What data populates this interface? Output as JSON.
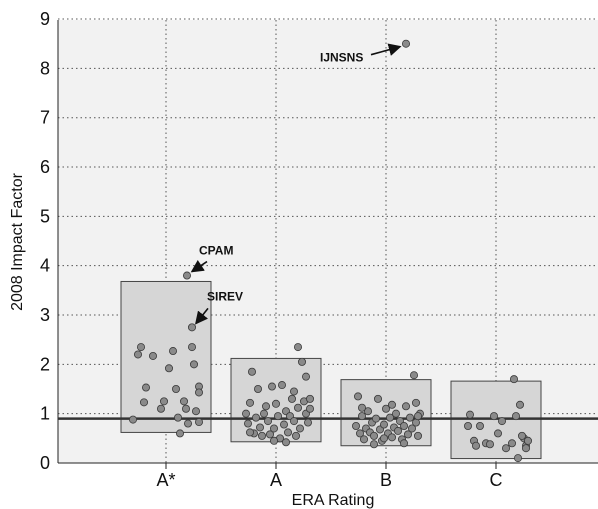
{
  "chart_data": {
    "type": "scatter",
    "xlabel": "ERA Rating",
    "ylabel": "2008 Impact Factor",
    "ylim": [
      0,
      9
    ],
    "yticks": [
      0,
      1,
      2,
      3,
      4,
      5,
      6,
      7,
      8,
      9
    ],
    "grid": true,
    "categories": [
      "A*",
      "A",
      "B",
      "C"
    ],
    "reference_line": 0.9,
    "boxes": [
      {
        "category": "A*",
        "low": 0.62,
        "high": 3.68
      },
      {
        "category": "A",
        "low": 0.43,
        "high": 2.12
      },
      {
        "category": "B",
        "low": 0.35,
        "high": 1.69
      },
      {
        "category": "C",
        "low": 0.09,
        "high": 1.66
      }
    ],
    "points": {
      "A*": [
        {
          "x": -0.28,
          "y": 2.2
        },
        {
          "x": -0.25,
          "y": 2.35
        },
        {
          "x": -0.22,
          "y": 1.23
        },
        {
          "x": -0.2,
          "y": 1.53
        },
        {
          "x": -0.13,
          "y": 2.17
        },
        {
          "x": -0.05,
          "y": 1.1
        },
        {
          "x": -0.02,
          "y": 1.25
        },
        {
          "x": 0.03,
          "y": 1.92
        },
        {
          "x": 0.07,
          "y": 2.27
        },
        {
          "x": 0.1,
          "y": 1.5
        },
        {
          "x": 0.12,
          "y": 0.92
        },
        {
          "x": 0.14,
          "y": 0.6
        },
        {
          "x": 0.18,
          "y": 1.25
        },
        {
          "x": 0.2,
          "y": 1.1
        },
        {
          "x": 0.22,
          "y": 0.8
        },
        {
          "x": 0.26,
          "y": 2.35
        },
        {
          "x": 0.28,
          "y": 2.0
        },
        {
          "x": 0.3,
          "y": 1.05
        },
        {
          "x": 0.33,
          "y": 1.55
        },
        {
          "x": 0.33,
          "y": 1.43
        },
        {
          "x": 0.33,
          "y": 0.83
        },
        {
          "x": -0.33,
          "y": 0.88
        },
        {
          "x": 0.26,
          "y": 2.75
        },
        {
          "x": 0.21,
          "y": 3.8
        }
      ],
      "A": [
        {
          "x": -0.3,
          "y": 1.0
        },
        {
          "x": -0.28,
          "y": 0.8
        },
        {
          "x": -0.26,
          "y": 1.22
        },
        {
          "x": -0.24,
          "y": 1.85
        },
        {
          "x": -0.22,
          "y": 0.6
        },
        {
          "x": -0.2,
          "y": 0.92
        },
        {
          "x": -0.18,
          "y": 1.5
        },
        {
          "x": -0.16,
          "y": 0.72
        },
        {
          "x": -0.14,
          "y": 0.55
        },
        {
          "x": -0.12,
          "y": 1.0
        },
        {
          "x": -0.1,
          "y": 1.15
        },
        {
          "x": -0.08,
          "y": 0.85
        },
        {
          "x": -0.06,
          "y": 0.58
        },
        {
          "x": -0.04,
          "y": 1.55
        },
        {
          "x": -0.02,
          "y": 0.7
        },
        {
          "x": 0.0,
          "y": 1.2
        },
        {
          "x": 0.02,
          "y": 0.95
        },
        {
          "x": 0.04,
          "y": 0.5
        },
        {
          "x": 0.06,
          "y": 1.58
        },
        {
          "x": 0.08,
          "y": 0.78
        },
        {
          "x": 0.1,
          "y": 1.05
        },
        {
          "x": 0.12,
          "y": 0.62
        },
        {
          "x": 0.14,
          "y": 0.95
        },
        {
          "x": 0.16,
          "y": 1.3
        },
        {
          "x": 0.18,
          "y": 0.85
        },
        {
          "x": 0.2,
          "y": 0.55
        },
        {
          "x": 0.22,
          "y": 1.12
        },
        {
          "x": 0.24,
          "y": 0.7
        },
        {
          "x": 0.26,
          "y": 2.05
        },
        {
          "x": 0.28,
          "y": 1.25
        },
        {
          "x": 0.3,
          "y": 1.0
        },
        {
          "x": 0.32,
          "y": 0.82
        },
        {
          "x": 0.34,
          "y": 1.1
        },
        {
          "x": 0.22,
          "y": 2.35
        },
        {
          "x": 0.3,
          "y": 1.75
        },
        {
          "x": -0.02,
          "y": 0.45
        },
        {
          "x": 0.1,
          "y": 0.42
        },
        {
          "x": -0.26,
          "y": 0.62
        },
        {
          "x": 0.18,
          "y": 1.45
        },
        {
          "x": 0.34,
          "y": 1.3
        }
      ],
      "B": [
        {
          "x": -0.3,
          "y": 0.75
        },
        {
          "x": -0.28,
          "y": 1.35
        },
        {
          "x": -0.26,
          "y": 0.6
        },
        {
          "x": -0.24,
          "y": 0.95
        },
        {
          "x": -0.22,
          "y": 0.48
        },
        {
          "x": -0.2,
          "y": 0.7
        },
        {
          "x": -0.18,
          "y": 1.05
        },
        {
          "x": -0.16,
          "y": 0.62
        },
        {
          "x": -0.14,
          "y": 0.82
        },
        {
          "x": -0.12,
          "y": 0.55
        },
        {
          "x": -0.1,
          "y": 0.9
        },
        {
          "x": -0.08,
          "y": 1.3
        },
        {
          "x": -0.06,
          "y": 0.68
        },
        {
          "x": -0.04,
          "y": 0.45
        },
        {
          "x": -0.02,
          "y": 0.78
        },
        {
          "x": 0.0,
          "y": 1.1
        },
        {
          "x": 0.02,
          "y": 0.6
        },
        {
          "x": 0.04,
          "y": 0.92
        },
        {
          "x": 0.06,
          "y": 0.52
        },
        {
          "x": 0.08,
          "y": 0.72
        },
        {
          "x": 0.1,
          "y": 1.0
        },
        {
          "x": 0.12,
          "y": 0.65
        },
        {
          "x": 0.14,
          "y": 0.85
        },
        {
          "x": 0.16,
          "y": 0.48
        },
        {
          "x": 0.18,
          "y": 0.75
        },
        {
          "x": 0.2,
          "y": 1.15
        },
        {
          "x": 0.22,
          "y": 0.58
        },
        {
          "x": 0.24,
          "y": 0.92
        },
        {
          "x": 0.26,
          "y": 0.7
        },
        {
          "x": 0.28,
          "y": 1.78
        },
        {
          "x": 0.3,
          "y": 0.82
        },
        {
          "x": 0.32,
          "y": 0.55
        },
        {
          "x": 0.34,
          "y": 1.0
        },
        {
          "x": -0.24,
          "y": 1.12
        },
        {
          "x": 0.06,
          "y": 1.18
        },
        {
          "x": 0.3,
          "y": 1.22
        },
        {
          "x": -0.12,
          "y": 0.38
        },
        {
          "x": 0.18,
          "y": 0.4
        },
        {
          "x": 0.32,
          "y": 0.95
        },
        {
          "x": -0.02,
          "y": 0.5
        }
      ],
      "C": [
        {
          "x": -0.28,
          "y": 0.75
        },
        {
          "x": -0.26,
          "y": 0.98
        },
        {
          "x": -0.22,
          "y": 0.45
        },
        {
          "x": -0.2,
          "y": 0.35
        },
        {
          "x": -0.16,
          "y": 0.75
        },
        {
          "x": -0.1,
          "y": 0.4
        },
        {
          "x": -0.06,
          "y": 0.38
        },
        {
          "x": -0.02,
          "y": 0.95
        },
        {
          "x": 0.02,
          "y": 0.6
        },
        {
          "x": 0.06,
          "y": 0.85
        },
        {
          "x": 0.1,
          "y": 0.3
        },
        {
          "x": 0.16,
          "y": 0.4
        },
        {
          "x": 0.18,
          "y": 1.7
        },
        {
          "x": 0.2,
          "y": 0.95
        },
        {
          "x": 0.22,
          "y": 0.1
        },
        {
          "x": 0.24,
          "y": 1.18
        },
        {
          "x": 0.28,
          "y": 0.5
        },
        {
          "x": 0.3,
          "y": 0.35
        },
        {
          "x": 0.32,
          "y": 0.45
        },
        {
          "x": 0.26,
          "y": 0.55
        },
        {
          "x": 0.3,
          "y": 0.3
        }
      ]
    },
    "outliers": [
      {
        "category": "B",
        "x": 0.2,
        "y": 8.5
      }
    ],
    "annotations": [
      {
        "label": "IJNSNS",
        "category": "B",
        "x": 0.2,
        "y": 8.5
      },
      {
        "label": "CPAM",
        "category": "A*",
        "x": 0.21,
        "y": 3.8
      },
      {
        "label": "SIREV",
        "category": "A*",
        "x": 0.26,
        "y": 2.75
      }
    ],
    "colors": {
      "box_fill": "#d6d6d6",
      "point_fill": "#8a8a8a",
      "reference_line": "#333333",
      "grid": "#555555"
    }
  }
}
